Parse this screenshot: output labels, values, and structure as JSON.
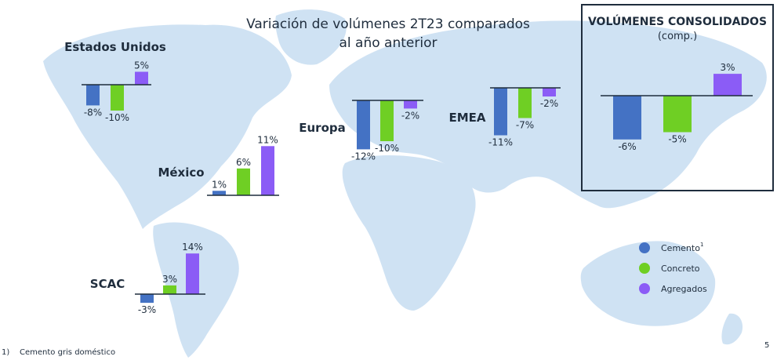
{
  "title_line1": "Variación de volúmenes 2T23 comparados",
  "title_line2": "al año anterior",
  "consolidated_title": "VOLÚMENES CONSOLIDADOS",
  "consolidated_subtitle": "(comp.)",
  "footnote": "1)    Cemento gris doméstico",
  "page_number": "5",
  "legend": [
    {
      "label": "Cemento",
      "sup": "1",
      "color": "#4472c4"
    },
    {
      "label": "Concreto",
      "color": "#6fcf24"
    },
    {
      "label": "Agregados",
      "color": "#8b5cf6"
    }
  ],
  "chart_data": [
    {
      "type": "bar",
      "region": "Estados Unidos",
      "categories": [
        "Cemento",
        "Concreto",
        "Agregados"
      ],
      "values": [
        -8,
        -10,
        5
      ],
      "labels": [
        "-8%",
        "-10%",
        "5%"
      ]
    },
    {
      "type": "bar",
      "region": "México",
      "categories": [
        "Cemento",
        "Concreto",
        "Agregados"
      ],
      "values": [
        1,
        6,
        11
      ],
      "labels": [
        "1%",
        "6%",
        "11%"
      ]
    },
    {
      "type": "bar",
      "region": "SCAC",
      "categories": [
        "Cemento",
        "Concreto",
        "Agregados"
      ],
      "values": [
        -3,
        3,
        14
      ],
      "labels": [
        "-3%",
        "3%",
        "14%"
      ]
    },
    {
      "type": "bar",
      "region": "Europa",
      "categories": [
        "Cemento",
        "Concreto",
        "Agregados"
      ],
      "values": [
        -12,
        -10,
        -2
      ],
      "labels": [
        "-12%",
        "-10%",
        "-2%"
      ]
    },
    {
      "type": "bar",
      "region": "EMEA",
      "categories": [
        "Cemento",
        "Concreto",
        "Agregados"
      ],
      "values": [
        -11,
        -7,
        -2
      ],
      "labels": [
        "-11%",
        "-7%",
        "-2%"
      ]
    },
    {
      "type": "bar",
      "region": "VOLÚMENES CONSOLIDADOS",
      "categories": [
        "Cemento",
        "Concreto",
        "Agregados"
      ],
      "values": [
        -6,
        -5,
        3
      ],
      "labels": [
        "-6%",
        "-5%",
        "3%"
      ]
    }
  ]
}
